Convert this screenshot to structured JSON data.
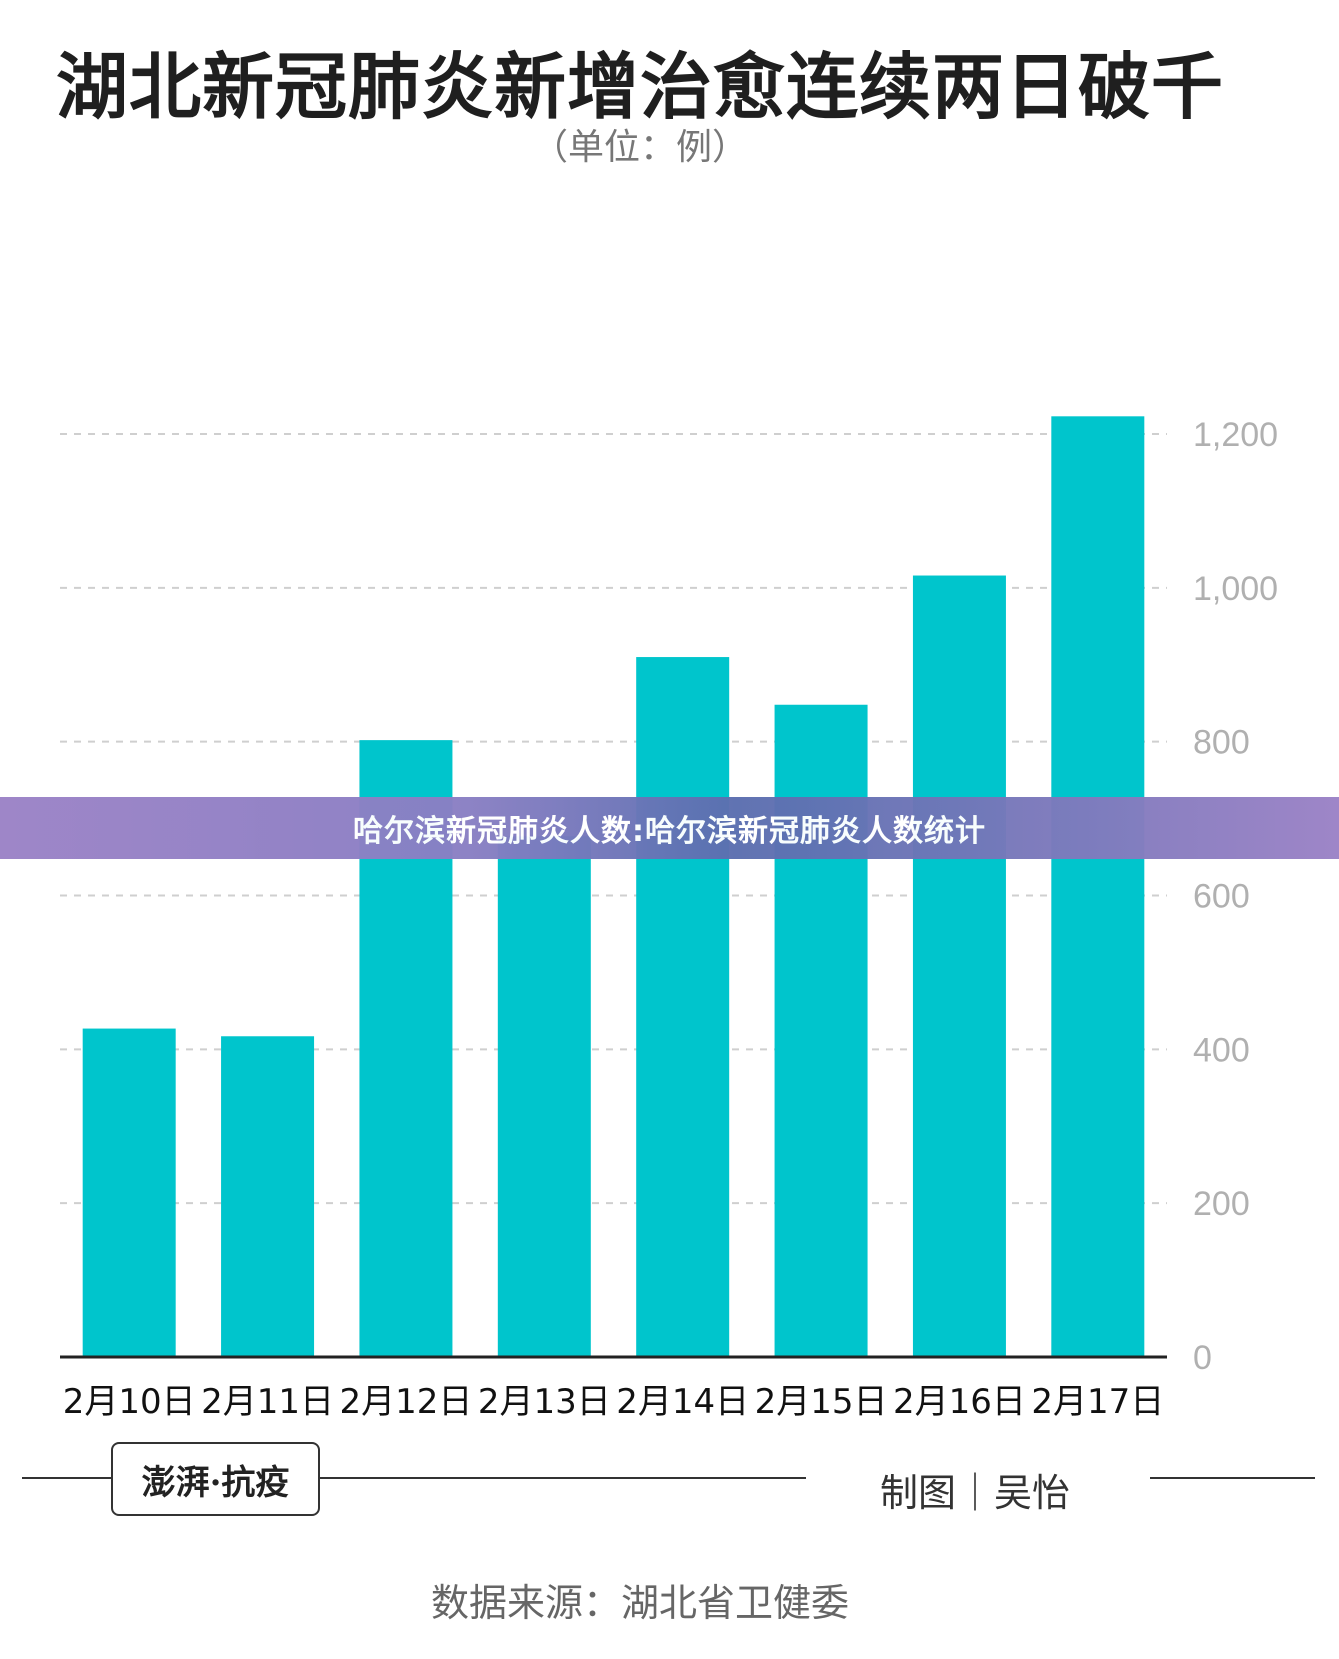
{
  "title": "湖北新冠肺炎新增治愈连续两日破千",
  "unit_label": "（单位：例）",
  "banner_text": "哈尔滨新冠肺炎人数:哈尔滨新冠肺炎人数统计",
  "logo_text": "澎湃·抗疫",
  "maker_text": "制图｜吴怡",
  "source_text": "数据来源：湖北省卫健委",
  "colors": {
    "bar": "#00c5cc",
    "grid": "#cfcfcf",
    "axis": "#222222",
    "tick": "#b0b0b0"
  },
  "chart_data": {
    "type": "bar",
    "title": "湖北新冠肺炎新增治愈连续两日破千",
    "subtitle": "（单位：例）",
    "categories": [
      "2月10日",
      "2月11日",
      "2月12日",
      "2月13日",
      "2月14日",
      "2月15日",
      "2月16日",
      "2月17日"
    ],
    "values": [
      427,
      417,
      802,
      677,
      910,
      848,
      1016,
      1223
    ],
    "ylim": [
      0,
      1200
    ],
    "yticks": [
      0,
      200,
      400,
      600,
      800,
      1000,
      1200
    ],
    "ytick_labels": [
      "0",
      "200",
      "400",
      "600",
      "800",
      "1,000",
      "1,200"
    ],
    "y_axis_position": "right",
    "grid": true
  }
}
